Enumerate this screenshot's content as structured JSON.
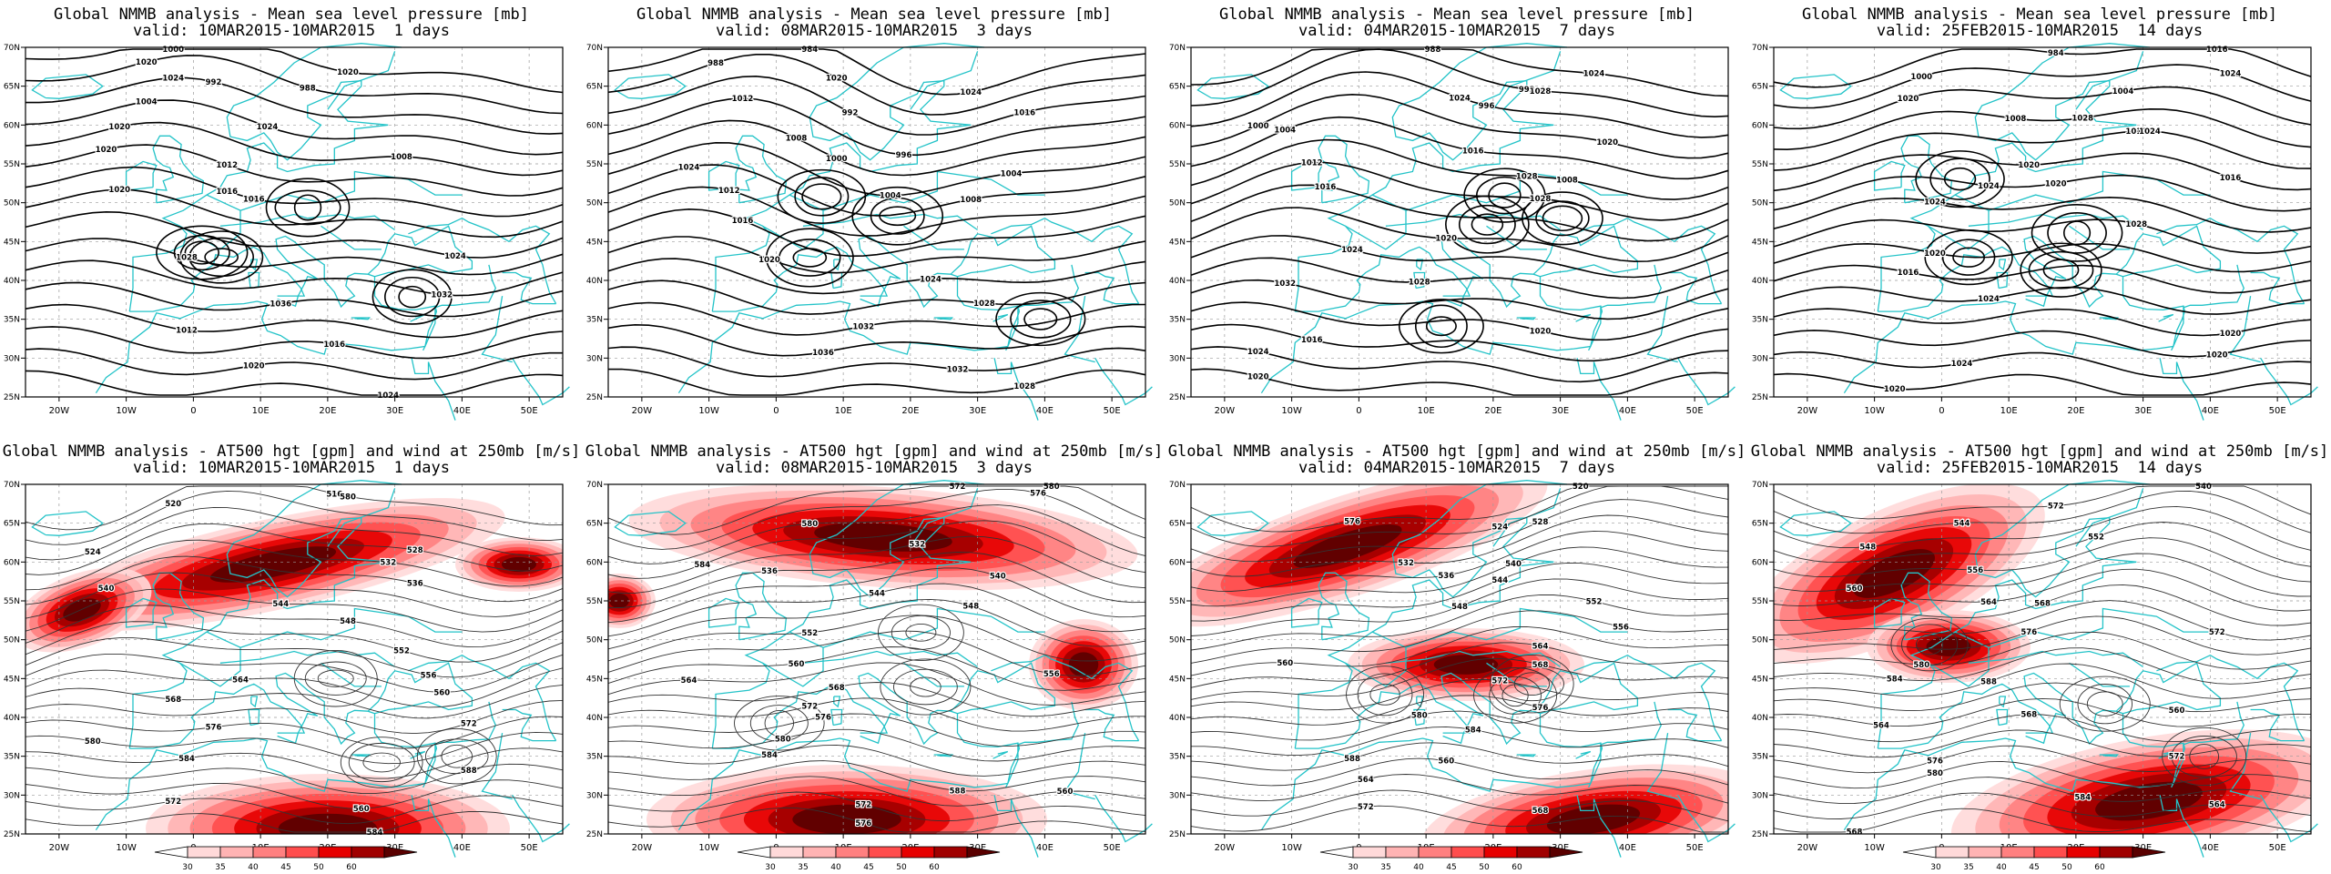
{
  "panels": [
    {
      "title": "Global NMMB analysis - Mean sea level pressure [mb]",
      "subtitle": "valid: 10MAR2015-10MAR2015  1 days",
      "kind": "mslp",
      "labels": [
        "1000",
        "988",
        "992",
        "1004",
        "1008",
        "1012",
        "1016",
        "1020",
        "1024",
        "1028",
        "1032",
        "1036",
        "1012",
        "1016",
        "1020",
        "1024",
        "1020",
        "1020",
        "1024",
        "1024",
        "1020",
        "1020",
        "1016"
      ]
    },
    {
      "title": "Global NMMB analysis - Mean sea level pressure [mb]",
      "subtitle": "valid: 08MAR2015-10MAR2015  3 days",
      "kind": "mslp",
      "labels": [
        "984",
        "988",
        "992",
        "996",
        "1000",
        "1004",
        "1008",
        "1012",
        "1016",
        "1020",
        "1024",
        "1028",
        "1032",
        "1036",
        "1032",
        "1028",
        "1024",
        "1020",
        "1016",
        "1012",
        "1008",
        "1004",
        "1024"
      ]
    },
    {
      "title": "Global NMMB analysis - Mean sea level pressure [mb]",
      "subtitle": "valid: 04MAR2015-10MAR2015  7 days",
      "kind": "mslp",
      "labels": [
        "988",
        "992",
        "996",
        "1000",
        "1004",
        "1008",
        "1012",
        "1016",
        "1020",
        "1024",
        "1028",
        "1032",
        "1020",
        "1016",
        "1024",
        "1020",
        "1024",
        "1028",
        "1024",
        "1020",
        "1016",
        "1028",
        "1028"
      ]
    },
    {
      "title": "Global NMMB analysis - Mean sea level pressure [mb]",
      "subtitle": "valid: 25FEB2015-10MAR2015  14 days",
      "kind": "mslp",
      "labels": [
        "984",
        "1000",
        "1004",
        "1008",
        "1012",
        "1016",
        "1020",
        "1024",
        "1028",
        "1020",
        "1016",
        "1024",
        "1020",
        "1020",
        "1024",
        "1020",
        "1016",
        "1024",
        "1020",
        "1028",
        "1024",
        "1020",
        "1024"
      ]
    },
    {
      "title": "Global NMMB analysis - AT500 hgt [gpm] and wind at 250mb [m/s]",
      "subtitle": "valid: 10MAR2015-10MAR2015  1 days",
      "kind": "z500",
      "labels": [
        "516",
        "520",
        "524",
        "528",
        "532",
        "536",
        "540",
        "544",
        "548",
        "552",
        "556",
        "560",
        "564",
        "568",
        "572",
        "576",
        "580",
        "584",
        "588",
        "560",
        "572",
        "584",
        "580"
      ]
    },
    {
      "title": "Global NMMB analysis - AT500 hgt [gpm] and wind at 250mb [m/s]",
      "subtitle": "valid: 08MAR2015-10MAR2015  3 days",
      "kind": "z500",
      "labels": [
        "572",
        "576",
        "580",
        "584",
        "532",
        "536",
        "540",
        "544",
        "548",
        "552",
        "556",
        "560",
        "564",
        "568",
        "572",
        "576",
        "580",
        "584",
        "588",
        "560",
        "572",
        "576",
        "580"
      ]
    },
    {
      "title": "Global NMMB analysis - AT500 hgt [gpm] and wind at 250mb [m/s]",
      "subtitle": "valid: 04MAR2015-10MAR2015  7 days",
      "kind": "z500",
      "labels": [
        "520",
        "524",
        "528",
        "532",
        "536",
        "540",
        "544",
        "548",
        "552",
        "556",
        "560",
        "564",
        "568",
        "572",
        "576",
        "580",
        "584",
        "588",
        "560",
        "564",
        "568",
        "572",
        "576"
      ]
    },
    {
      "title": "Global NMMB analysis - AT500 hgt [gpm] and wind at 250mb [m/s]",
      "subtitle": "valid: 25FEB2015-10MAR2015  14 days",
      "kind": "z500",
      "labels": [
        "540",
        "544",
        "548",
        "552",
        "556",
        "560",
        "564",
        "568",
        "572",
        "576",
        "580",
        "584",
        "588",
        "560",
        "564",
        "568",
        "572",
        "576",
        "580",
        "584",
        "564",
        "568",
        "572"
      ]
    }
  ],
  "axes": {
    "lon_ticks": [
      "20W",
      "10W",
      "0",
      "10E",
      "20E",
      "30E",
      "40E",
      "50E"
    ],
    "lat_ticks": [
      "70N",
      "65N",
      "60N",
      "55N",
      "50N",
      "45N",
      "40N",
      "35N",
      "30N",
      "25N"
    ]
  },
  "legend": {
    "ticks": [
      "30",
      "35",
      "40",
      "45",
      "50",
      "60"
    ],
    "colors": [
      "#ffffff",
      "#ffd9d9",
      "#ffb3b3",
      "#ff8080",
      "#ff4d4d",
      "#e60000",
      "#a00000",
      "#5a0000"
    ]
  }
}
